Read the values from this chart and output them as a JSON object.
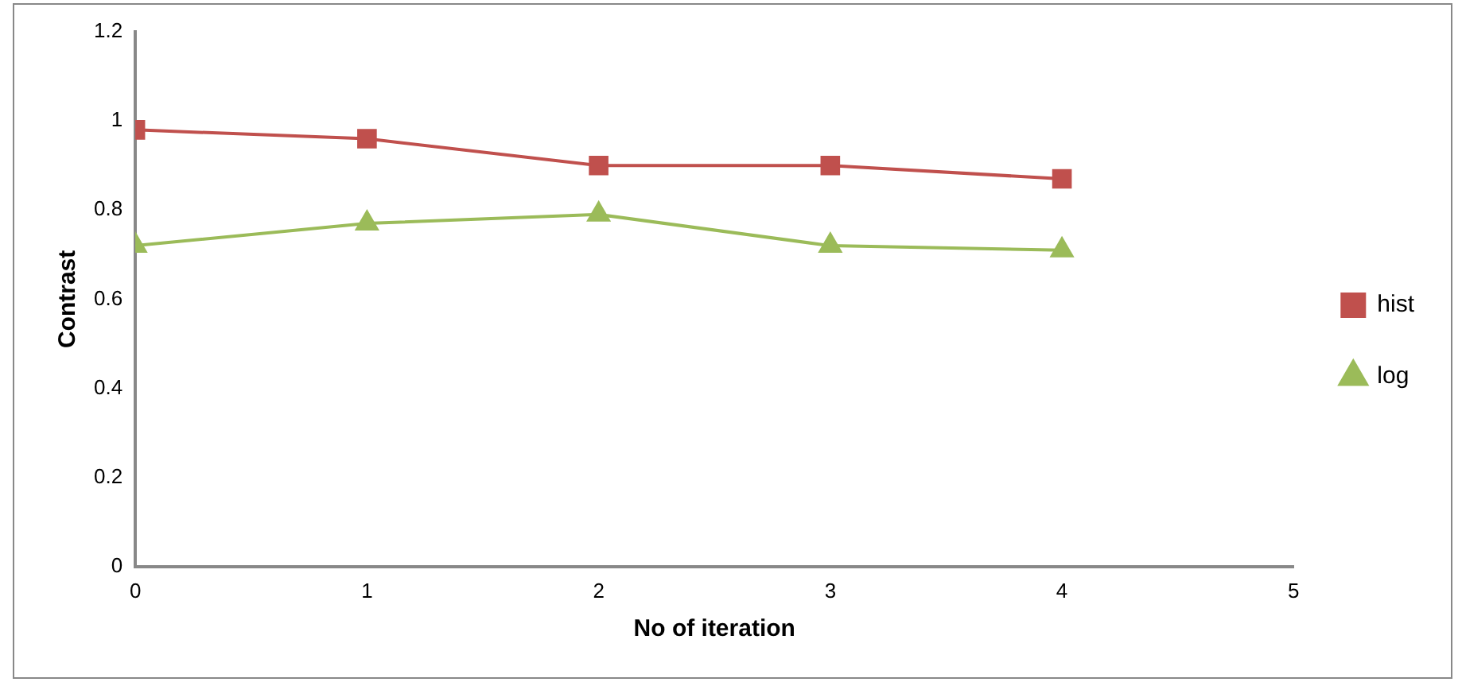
{
  "chart_data": {
    "type": "line",
    "xlabel": "No of iteration",
    "ylabel": "Contrast",
    "x": [
      0,
      1,
      2,
      3,
      4
    ],
    "series": [
      {
        "name": "hist",
        "color": "#c0504d",
        "marker": "square",
        "values": [
          0.98,
          0.96,
          0.9,
          0.9,
          0.87
        ]
      },
      {
        "name": "log",
        "color": "#9bbb59",
        "marker": "triangle",
        "values": [
          0.72,
          0.77,
          0.79,
          0.72,
          0.71
        ]
      }
    ],
    "xlim": [
      0,
      5
    ],
    "xticks": [
      0,
      1,
      2,
      3,
      4,
      5
    ],
    "ylim": [
      0,
      1.2
    ],
    "yticks": [
      0,
      0.2,
      0.4,
      0.6,
      0.8,
      1,
      1.2
    ],
    "grid": false,
    "legend": "right"
  }
}
